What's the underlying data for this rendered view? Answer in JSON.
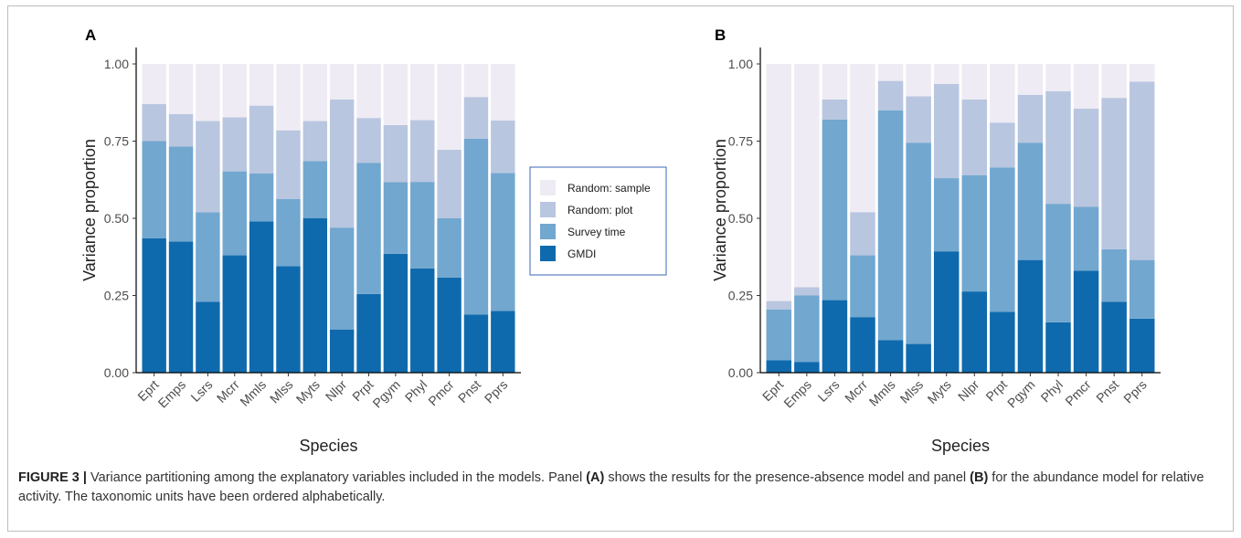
{
  "colors": {
    "GMDI": "#0f6aad",
    "Survey time": "#72a7cf",
    "Random: plot": "#b9c6e0",
    "Random: sample": "#eeebf4",
    "legend_border": "#3a67b5"
  },
  "legend": {
    "entries": [
      "Random: sample",
      "Random: plot",
      "Survey time",
      "GMDI"
    ]
  },
  "caption": {
    "figure_label": "FIGURE 3 |",
    "text_1": " Variance partitioning among the explanatory variables included in the models. Panel ",
    "panel_a": "(A)",
    "text_2": " shows the results for the presence-absence model and panel ",
    "panel_b": "(B)",
    "text_3": " for the abundance model for relative activity. The taxonomic units have been ordered alphabetically."
  },
  "chart_data": [
    {
      "panel": "A",
      "type": "bar",
      "stacked": true,
      "xlabel": "Species",
      "ylabel": "Variance proportion",
      "ylim": [
        0,
        1
      ],
      "yticks": [
        "0.00",
        "0.25",
        "0.50",
        "0.75",
        "1.00"
      ],
      "categories": [
        "Eprt",
        "Emps",
        "Lsrs",
        "Mcrr",
        "Mmls",
        "Mlss",
        "Myts",
        "Nlpr",
        "Prpt",
        "Pgym",
        "Phyl",
        "Pmcr",
        "Pnst",
        "Pprs"
      ],
      "series": [
        {
          "name": "GMDI",
          "values": [
            0.435,
            0.425,
            0.23,
            0.38,
            0.49,
            0.345,
            0.5,
            0.14,
            0.255,
            0.385,
            0.338,
            0.308,
            0.188,
            0.2
          ]
        },
        {
          "name": "Survey time",
          "values": [
            0.315,
            0.308,
            0.29,
            0.272,
            0.155,
            0.218,
            0.185,
            0.33,
            0.425,
            0.232,
            0.28,
            0.192,
            0.57,
            0.447
          ]
        },
        {
          "name": "Random: plot",
          "values": [
            0.12,
            0.105,
            0.295,
            0.175,
            0.22,
            0.222,
            0.13,
            0.415,
            0.145,
            0.185,
            0.2,
            0.222,
            0.135,
            0.17
          ]
        },
        {
          "name": "Random: sample",
          "values": [
            0.13,
            0.162,
            0.185,
            0.173,
            0.135,
            0.215,
            0.185,
            0.115,
            0.175,
            0.198,
            0.182,
            0.278,
            0.107,
            0.183
          ]
        }
      ],
      "grid": false,
      "legend": "right"
    },
    {
      "panel": "B",
      "type": "bar",
      "stacked": true,
      "xlabel": "Species",
      "ylabel": "Variance proportion",
      "ylim": [
        0,
        1
      ],
      "yticks": [
        "0.00",
        "0.25",
        "0.50",
        "0.75",
        "1.00"
      ],
      "categories": [
        "Eprt",
        "Emps",
        "Lsrs",
        "Mcrr",
        "Mmls",
        "Mlss",
        "Myts",
        "Nlpr",
        "Prpt",
        "Pgym",
        "Phyl",
        "Pmcr",
        "Pnst",
        "Pprs"
      ],
      "series": [
        {
          "name": "GMDI",
          "values": [
            0.04,
            0.035,
            0.235,
            0.18,
            0.105,
            0.093,
            0.393,
            0.263,
            0.197,
            0.365,
            0.163,
            0.33,
            0.23,
            0.175
          ]
        },
        {
          "name": "Survey time",
          "values": [
            0.165,
            0.215,
            0.585,
            0.2,
            0.745,
            0.652,
            0.237,
            0.377,
            0.468,
            0.38,
            0.384,
            0.207,
            0.17,
            0.19
          ]
        },
        {
          "name": "Random: plot",
          "values": [
            0.027,
            0.027,
            0.065,
            0.14,
            0.095,
            0.15,
            0.305,
            0.245,
            0.145,
            0.155,
            0.365,
            0.318,
            0.49,
            0.578
          ]
        },
        {
          "name": "Random: sample",
          "values": [
            0.768,
            0.723,
            0.115,
            0.48,
            0.055,
            0.105,
            0.065,
            0.115,
            0.19,
            0.1,
            0.088,
            0.145,
            0.11,
            0.057
          ]
        }
      ],
      "grid": false,
      "legend": "none"
    }
  ]
}
